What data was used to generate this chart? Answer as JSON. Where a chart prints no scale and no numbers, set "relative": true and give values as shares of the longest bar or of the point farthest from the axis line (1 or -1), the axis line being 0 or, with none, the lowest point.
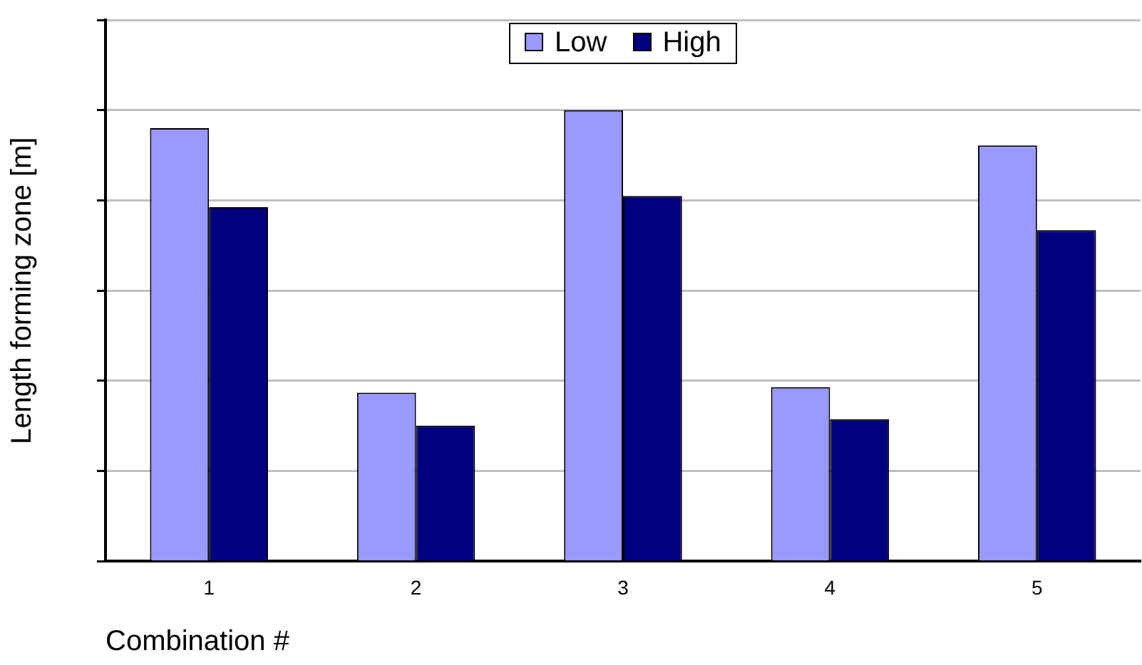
{
  "chart_data": {
    "type": "bar",
    "ylabel": "Length forming zone [m]",
    "xlabel": "Combination #",
    "categories": [
      "1",
      "2",
      "3",
      "4",
      "5"
    ],
    "relative": true,
    "grid": "y",
    "legend": "top",
    "series": [
      {
        "name": "Low",
        "color": "#9999ff",
        "values": [
          0.96,
          0.374,
          1,
          0.386,
          0.922
        ]
      },
      {
        "name": "High",
        "color": "#000080",
        "values": [
          0.785,
          0.301,
          0.81,
          0.315,
          0.734
        ]
      }
    ]
  }
}
